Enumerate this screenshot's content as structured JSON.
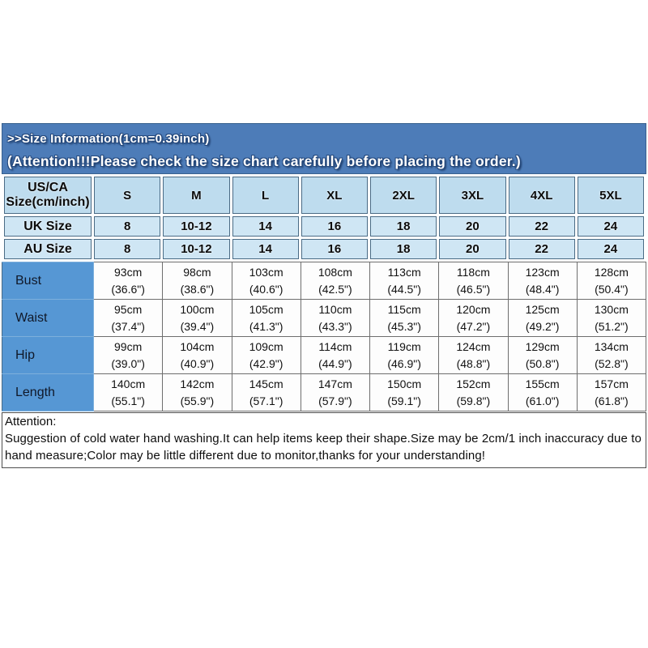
{
  "banner": {
    "line1": ">>Size Information(1cm=0.39inch)",
    "line2": "(Attention!!!Please check the size chart carefully before placing the order.)"
  },
  "size_table": {
    "corner_label": "US/CA Size(cm/inch)",
    "sizes": [
      "S",
      "M",
      "L",
      "XL",
      "2XL",
      "3XL",
      "4XL",
      "5XL"
    ],
    "conversion_rows": [
      {
        "label": "UK Size",
        "values": [
          "8",
          "10-12",
          "14",
          "16",
          "18",
          "20",
          "22",
          "24"
        ]
      },
      {
        "label": "AU Size",
        "values": [
          "8",
          "10-12",
          "14",
          "16",
          "18",
          "20",
          "22",
          "24"
        ]
      }
    ],
    "measurement_rows": [
      {
        "label": "Bust",
        "cm": [
          "93cm",
          "98cm",
          "103cm",
          "108cm",
          "113cm",
          "118cm",
          "123cm",
          "128cm"
        ],
        "inch": [
          "(36.6\")",
          "(38.6\")",
          "(40.6\")",
          "(42.5\")",
          "(44.5\")",
          "(46.5\")",
          "(48.4\")",
          "(50.4\")"
        ]
      },
      {
        "label": "Waist",
        "cm": [
          "95cm",
          "100cm",
          "105cm",
          "110cm",
          "115cm",
          "120cm",
          "125cm",
          "130cm"
        ],
        "inch": [
          "(37.4\")",
          "(39.4\")",
          "(41.3\")",
          "(43.3\")",
          "(45.3\")",
          "(47.2\")",
          "(49.2\")",
          "(51.2\")"
        ]
      },
      {
        "label": "Hip",
        "cm": [
          "99cm",
          "104cm",
          "109cm",
          "114cm",
          "119cm",
          "124cm",
          "129cm",
          "134cm"
        ],
        "inch": [
          "(39.0\")",
          "(40.9\")",
          "(42.9\")",
          "(44.9\")",
          "(46.9\")",
          "(48.8\")",
          "(50.8\")",
          "(52.8\")"
        ]
      },
      {
        "label": "Length",
        "cm": [
          "140cm",
          "142cm",
          "145cm",
          "147cm",
          "150cm",
          "152cm",
          "155cm",
          "157cm"
        ],
        "inch": [
          "(55.1\")",
          "(55.9\")",
          "(57.1\")",
          "(57.9\")",
          "(59.1\")",
          "(59.8\")",
          "(61.0\")",
          "(61.8\")"
        ]
      }
    ]
  },
  "attention": {
    "title": "Attention:",
    "body": "Suggestion of cold water hand washing.It can help items keep their shape.Size may be 2cm/1 inch inaccuracy due to hand measure;Color may be little different due to monitor,thanks for your understanding!"
  },
  "colors": {
    "banner_blue": "#4d7cb8",
    "header_cell_blue": "#bedcee",
    "conversion_cell_blue": "#cfe6f4",
    "measurement_label_blue": "#5697d4",
    "cell_border": "#6e6e6e",
    "text": "#0b0b0b"
  }
}
